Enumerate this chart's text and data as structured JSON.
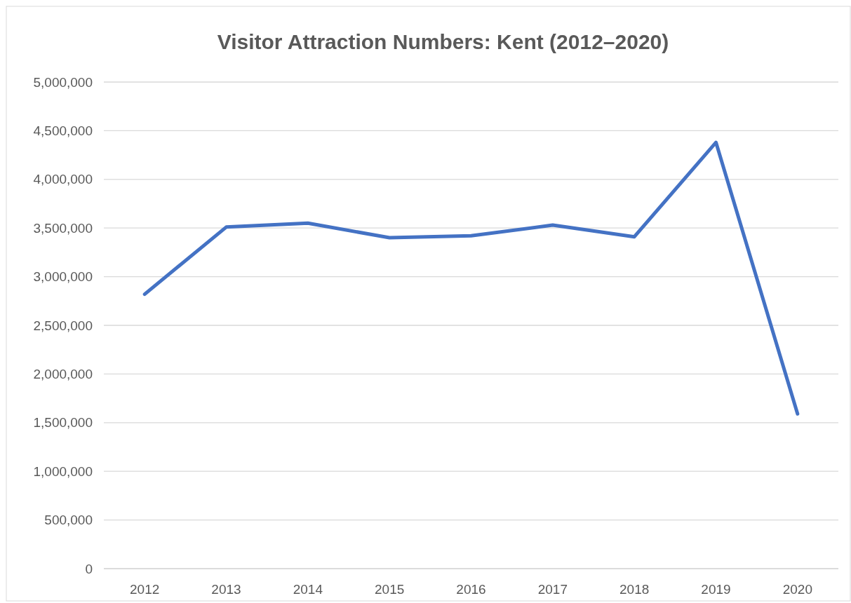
{
  "chart_data": {
    "type": "line",
    "title": "Visitor Attraction Numbers: Kent (2012–2020)",
    "categories": [
      "2012",
      "2013",
      "2014",
      "2015",
      "2016",
      "2017",
      "2018",
      "2019",
      "2020"
    ],
    "series": [
      {
        "color": "#4472c4",
        "values": [
          2820000,
          3510000,
          3550000,
          3400000,
          3420000,
          3530000,
          3410000,
          4380000,
          1590000
        ]
      }
    ],
    "ylim": [
      0,
      5000000
    ],
    "yticks": [
      {
        "value": 0,
        "label": "0"
      },
      {
        "value": 500000,
        "label": "500,000"
      },
      {
        "value": 1000000,
        "label": "1,000,000"
      },
      {
        "value": 1500000,
        "label": "1,500,000"
      },
      {
        "value": 2000000,
        "label": "2,000,000"
      },
      {
        "value": 2500000,
        "label": "2,500,000"
      },
      {
        "value": 3000000,
        "label": "3,000,000"
      },
      {
        "value": 3500000,
        "label": "3,500,000"
      },
      {
        "value": 4000000,
        "label": "4,000,000"
      },
      {
        "value": 4500000,
        "label": "4,500,000"
      },
      {
        "value": 5000000,
        "label": "5,000,000"
      }
    ],
    "grid": "y",
    "marker": "none",
    "line_style": "solid"
  }
}
